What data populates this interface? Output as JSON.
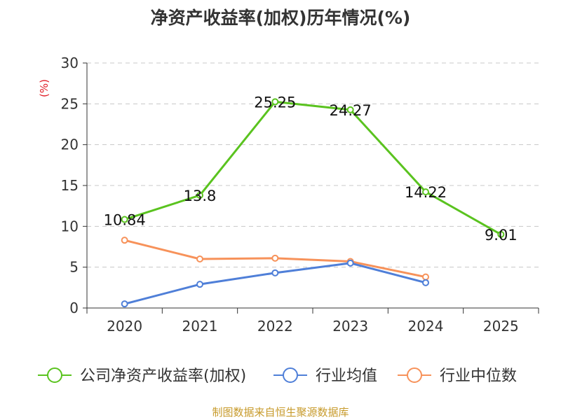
{
  "chart_data": {
    "type": "line",
    "title": "净资产收益率(加权)历年情况(%)",
    "ylabel": "(%)",
    "xlabel": "",
    "categories": [
      "2020",
      "2021",
      "2022",
      "2023",
      "2024",
      "2025"
    ],
    "ylim": [
      0,
      30
    ],
    "yticks": [
      0,
      5,
      10,
      15,
      20,
      25,
      30
    ],
    "grid": true,
    "legend_position": "bottom",
    "series": [
      {
        "name": "公司净资产收益率(加权)",
        "color": "#5ac31f",
        "values": [
          10.84,
          13.8,
          25.25,
          24.27,
          14.22,
          9.01
        ],
        "labels": [
          "10.84",
          "13.8",
          "25.25",
          "24.27",
          "14.22",
          "9.01"
        ]
      },
      {
        "name": "行业均值",
        "color": "#4f7fd8",
        "values": [
          0.5,
          2.9,
          4.3,
          5.5,
          3.1,
          null
        ]
      },
      {
        "name": "行业中位数",
        "color": "#f7925a",
        "values": [
          8.3,
          6.0,
          6.1,
          5.7,
          3.8,
          null
        ]
      }
    ],
    "source": "制图数据来自恒生聚源数据库"
  }
}
